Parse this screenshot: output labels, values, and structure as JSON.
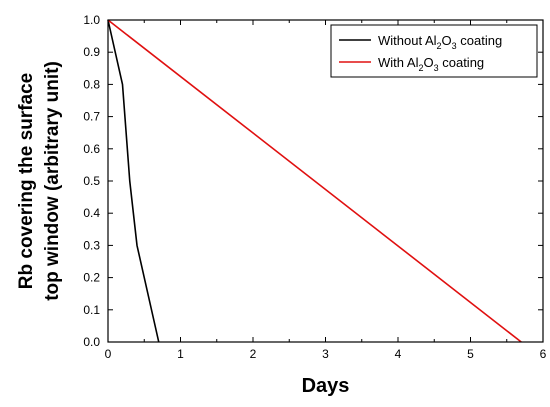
{
  "chart_data": {
    "type": "line",
    "title": "",
    "xlabel": "Days",
    "ylabel_lines": [
      "Rb covering the surface",
      "top window (arbitrary unit)"
    ],
    "xlim": [
      0,
      6
    ],
    "ylim": [
      0,
      1.0
    ],
    "x_ticks": [
      "0",
      "1",
      "2",
      "3",
      "4",
      "5",
      "6"
    ],
    "y_ticks": [
      "0.0",
      "0.1",
      "0.2",
      "0.3",
      "0.4",
      "0.5",
      "0.6",
      "0.7",
      "0.8",
      "0.9",
      "1.0"
    ],
    "grid": false,
    "legend_position": "top-right",
    "series": [
      {
        "name": "Without Al2O3 coating",
        "legend": {
          "pre": "Without Al",
          "sub1": "2",
          "mid": "O",
          "sub2": "3",
          "post": " coating"
        },
        "color": "#000000",
        "points": [
          [
            0,
            1.0
          ],
          [
            0.2,
            0.8
          ],
          [
            0.3,
            0.5
          ],
          [
            0.4,
            0.3
          ],
          [
            0.7,
            0.0
          ]
        ]
      },
      {
        "name": "With Al2O3 coating",
        "legend": {
          "pre": "With Al",
          "sub1": "2",
          "mid": "O",
          "sub2": "3",
          "post": " coating"
        },
        "color": "#e01010",
        "points": [
          [
            0,
            1.0
          ],
          [
            5.7,
            0.0
          ]
        ]
      }
    ]
  }
}
